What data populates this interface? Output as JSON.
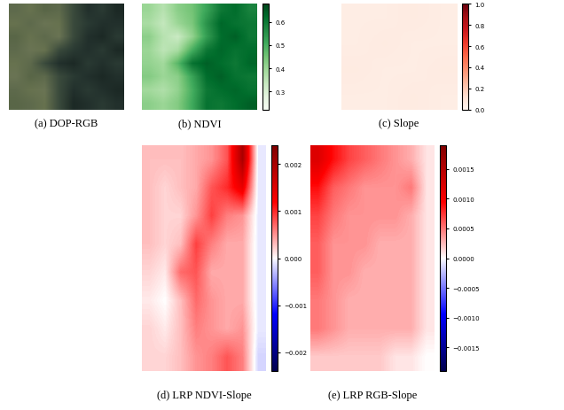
{
  "chart_data": [
    {
      "type": "image",
      "caption": "(a) DOP-RGB",
      "tick_labels": false,
      "cells": [
        [
          "#5e6a4c",
          "#67724f",
          "#596647",
          "#5e6a4c",
          "#3a4a3c",
          "#22302c",
          "#2a3a33",
          "#1c2925"
        ],
        [
          "#67724f",
          "#5e6a4c",
          "#6a7454",
          "#67724f",
          "#3a4a3c",
          "#2a3a33",
          "#22302c",
          "#22302c"
        ],
        [
          "#596647",
          "#67724f",
          "#5e6a4c",
          "#6a7454",
          "#3a4a3c",
          "#22302c",
          "#1c2925",
          "#2a3a33"
        ],
        [
          "#5e6a4c",
          "#6a7454",
          "#67724f",
          "#3a4a3c",
          "#2a3a33",
          "#22302c",
          "#2a3a33",
          "#1c2925"
        ],
        [
          "#67724f",
          "#5e6a4c",
          "#3a4a3c",
          "#22302c",
          "#1c2925",
          "#2a3a33",
          "#22302c",
          "#2a3a33"
        ],
        [
          "#6a7454",
          "#596647",
          "#5e6a4c",
          "#3a4a3c",
          "#2a3a33",
          "#22302c",
          "#1c2925",
          "#22302c"
        ],
        [
          "#5e6a4c",
          "#67724f",
          "#6a7454",
          "#3a4a3c",
          "#22302c",
          "#2a3a33",
          "#22302c",
          "#1c2925"
        ],
        [
          "#596647",
          "#5e6a4c",
          "#67724f",
          "#3a4a3c",
          "#1c2925",
          "#22302c",
          "#2a3a33",
          "#22302c"
        ]
      ]
    },
    {
      "type": "heatmap",
      "caption": "(b) NDVI",
      "tick_labels": false,
      "color": "Greens",
      "cells": [
        [
          0.4,
          0.36,
          0.42,
          0.45,
          0.52,
          0.6,
          0.62,
          0.58
        ],
        [
          0.38,
          0.34,
          0.4,
          0.44,
          0.55,
          0.63,
          0.61,
          0.6
        ],
        [
          0.42,
          0.36,
          0.33,
          0.41,
          0.53,
          0.62,
          0.64,
          0.6
        ],
        [
          0.4,
          0.35,
          0.38,
          0.5,
          0.6,
          0.63,
          0.61,
          0.62
        ],
        [
          0.41,
          0.39,
          0.48,
          0.61,
          0.64,
          0.62,
          0.6,
          0.63
        ],
        [
          0.43,
          0.4,
          0.42,
          0.52,
          0.62,
          0.64,
          0.61,
          0.6
        ],
        [
          0.39,
          0.37,
          0.41,
          0.5,
          0.6,
          0.62,
          0.63,
          0.61
        ],
        [
          0.42,
          0.4,
          0.43,
          0.51,
          0.61,
          0.6,
          0.62,
          0.64
        ]
      ],
      "colorbar_range": [
        0.22,
        0.68
      ],
      "colorbar_ticks": [
        0.3,
        0.4,
        0.5,
        0.6
      ]
    },
    {
      "type": "heatmap",
      "caption": "(c) Slope",
      "tick_labels": false,
      "color": "Reds",
      "cells": [
        [
          0.05,
          0.05,
          0.06,
          0.05
        ],
        [
          0.05,
          0.06,
          0.05,
          0.05
        ],
        [
          0.06,
          0.05,
          0.05,
          0.06
        ],
        [
          0.05,
          0.05,
          0.06,
          0.05
        ]
      ],
      "colorbar_range": [
        0,
        1
      ],
      "colorbar_ticks": [
        {
          "value": 0,
          "label": "0.0"
        },
        0.2,
        0.4,
        0.6,
        0.8,
        {
          "value": 1,
          "label": "1.0"
        }
      ]
    },
    {
      "type": "heatmap",
      "caption": "(d) LRP NDVI-Slope",
      "tick_labels": false,
      "color": "seismic",
      "cells": [
        [
          0.0003,
          0.0003,
          0.0003,
          0.0004,
          0.0005,
          0.0008,
          0.002,
          -0.0001
        ],
        [
          0.0003,
          0.0002,
          0.0003,
          0.0004,
          0.0008,
          0.001,
          0.0014,
          -0.0001
        ],
        [
          0.0003,
          0.0002,
          0.0002,
          0.0005,
          0.0009,
          0.0006,
          0.0005,
          -0.0001
        ],
        [
          0.0003,
          0.0002,
          0.0003,
          0.0009,
          0.0006,
          0.0004,
          0.0004,
          -0.0001
        ],
        [
          0.0002,
          0.0001,
          0.0007,
          0.0008,
          0.0004,
          0.0004,
          0.0004,
          -0.0001
        ],
        [
          0.0001,
          0.0,
          0.0003,
          0.0007,
          0.0005,
          0.0004,
          0.0004,
          -0.0001
        ],
        [
          0.0002,
          0.0001,
          0.0003,
          0.0006,
          0.0005,
          0.0004,
          0.0005,
          -0.0001
        ],
        [
          0.0002,
          0.0002,
          0.0003,
          0.0005,
          0.0006,
          0.0008,
          0.0006,
          -0.0002
        ]
      ],
      "colorbar_range": [
        -0.0024,
        0.0024
      ],
      "colorbar_ticks": [
        {
          "value": -0.002,
          "label": "−0.002"
        },
        {
          "value": -0.001,
          "label": "−0.001"
        },
        {
          "value": 0,
          "label": "0.000"
        },
        0.001,
        0.002
      ]
    },
    {
      "type": "heatmap",
      "caption": "(e) LRP RGB-Slope",
      "tick_labels": false,
      "color": "seismic",
      "cells": [
        [
          0.0012,
          0.0009,
          0.0007,
          0.0006,
          0.0005,
          0.0004,
          0.0003,
          0.0001
        ],
        [
          0.0009,
          0.0006,
          0.0005,
          0.0004,
          0.0004,
          0.0004,
          0.0005,
          0.0001
        ],
        [
          0.0007,
          0.0005,
          0.0004,
          0.0004,
          0.0004,
          0.0004,
          0.0003,
          0.0001
        ],
        [
          0.0006,
          0.0004,
          0.0004,
          0.0004,
          0.0003,
          0.0003,
          0.0003,
          0.0001
        ],
        [
          0.0006,
          0.0004,
          0.0004,
          0.0003,
          0.0003,
          0.0003,
          0.0003,
          0.0001
        ],
        [
          0.0005,
          0.0004,
          0.0003,
          0.0003,
          0.0003,
          0.0003,
          0.0003,
          0.0001
        ],
        [
          0.0005,
          0.0004,
          0.0003,
          0.0003,
          0.0003,
          0.0003,
          0.0003,
          0.0001
        ],
        [
          0.0002,
          0.0002,
          0.0002,
          0.0002,
          0.0002,
          0.0001,
          0.0001,
          0.0
        ]
      ],
      "colorbar_range": [
        -0.0019,
        0.0019
      ],
      "colorbar_ticks": [
        {
          "value": -0.0015,
          "label": "−0.0015"
        },
        {
          "value": -0.001,
          "label": "−0.0010"
        },
        {
          "value": -0.0005,
          "label": "−0.0005"
        },
        {
          "value": 0,
          "label": "0.0000"
        },
        0.0005,
        {
          "value": 0.001,
          "label": "0.0010"
        },
        0.0015
      ]
    }
  ]
}
